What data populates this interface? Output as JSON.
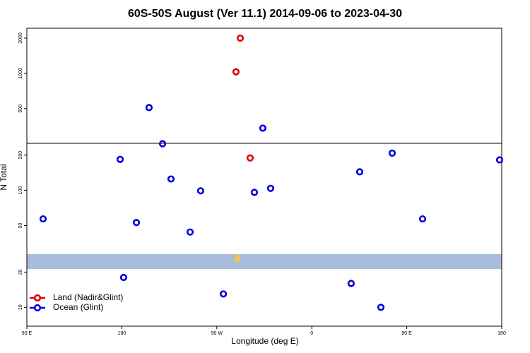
{
  "chart_data": {
    "type": "scatter",
    "title": "60S-50S August (Ver 11.1)   2014-09-06 to 2023-04-30",
    "x_label": "Longitude (deg E)",
    "y_label": "N Total",
    "log_y": true,
    "legend": "lower left",
    "xlim": [
      90,
      540
    ],
    "xticks": [
      {
        "value": 90,
        "label": "90 E"
      },
      180,
      {
        "value": 270,
        "label": "90 W"
      },
      {
        "value": 360,
        "label": "0"
      },
      {
        "value": 450,
        "label": "90 E"
      },
      {
        "value": 540,
        "label": "180"
      }
    ],
    "ylim": [
      6.9,
      2430
    ],
    "yticks": [
      10,
      20,
      50,
      100,
      200,
      500,
      1000,
      2000
    ],
    "series": [
      {
        "name": "Land (Nadir&Glint)",
        "color": "#e00000",
        "x": [
          292.2,
          288.2,
          301.6
        ],
        "values": [
          2000,
          1030,
          189
        ]
      },
      {
        "name": "Ocean (Glint)",
        "color": "#0000dd",
        "x": [
          105.4,
          178.4,
          181.7,
          193.8,
          205.8,
          218.6,
          226.6,
          244.7,
          254.7,
          276.2,
          305.6,
          313.6,
          321,
          397.3,
          405.4,
          425.5,
          436.2,
          465,
          538
        ],
        "values": [
          57,
          184,
          18,
          53,
          510,
          250,
          125,
          44,
          99,
          13,
          96,
          340,
          104,
          16,
          144,
          10,
          208,
          57,
          182
        ]
      }
    ]
  }
}
